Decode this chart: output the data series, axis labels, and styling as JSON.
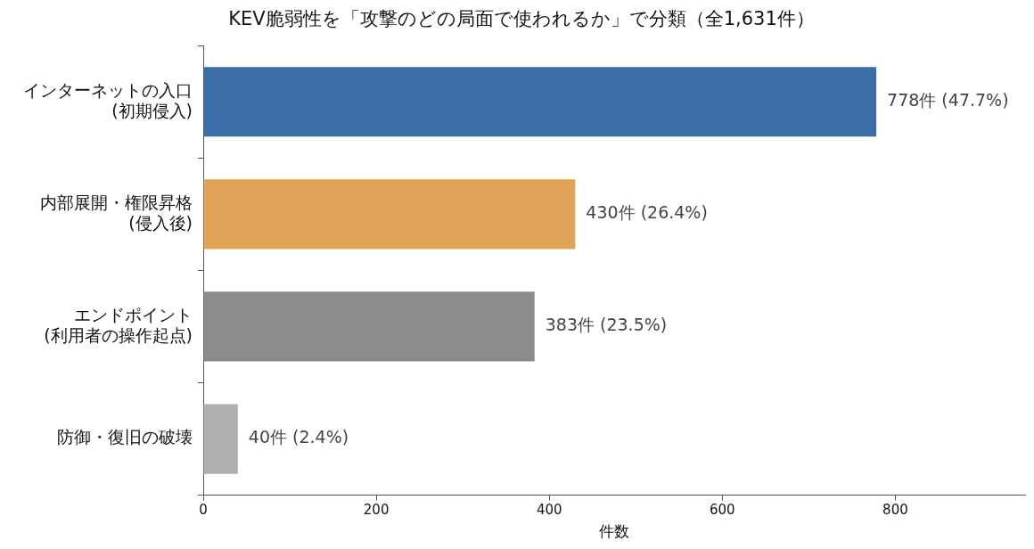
{
  "chart_data": {
    "type": "bar",
    "orientation": "horizontal",
    "title": "KEV脆弱性を「攻撃のどの局面で使われるか」で分類（全1,631件）",
    "xlabel": "件数",
    "categories": [
      "インターネットの入口\n(初期侵入)",
      "内部展開・権限昇格\n(侵入後)",
      "エンドポイント\n(利用者の操作起点)",
      "防御・復旧の破壊"
    ],
    "values": [
      778,
      430,
      383,
      40
    ],
    "colors": [
      "#3a6ea5",
      "#e0a458",
      "#8c8c8c",
      "#b0b0b0"
    ],
    "value_labels": [
      "778件 (47.7%)",
      "430件 (26.4%)",
      "383件 (23.5%)",
      "40件 (2.4%)"
    ],
    "xlim": [
      0,
      950
    ],
    "xticks": [
      0,
      200,
      400,
      600,
      800
    ],
    "grid": false,
    "legend": false
  }
}
